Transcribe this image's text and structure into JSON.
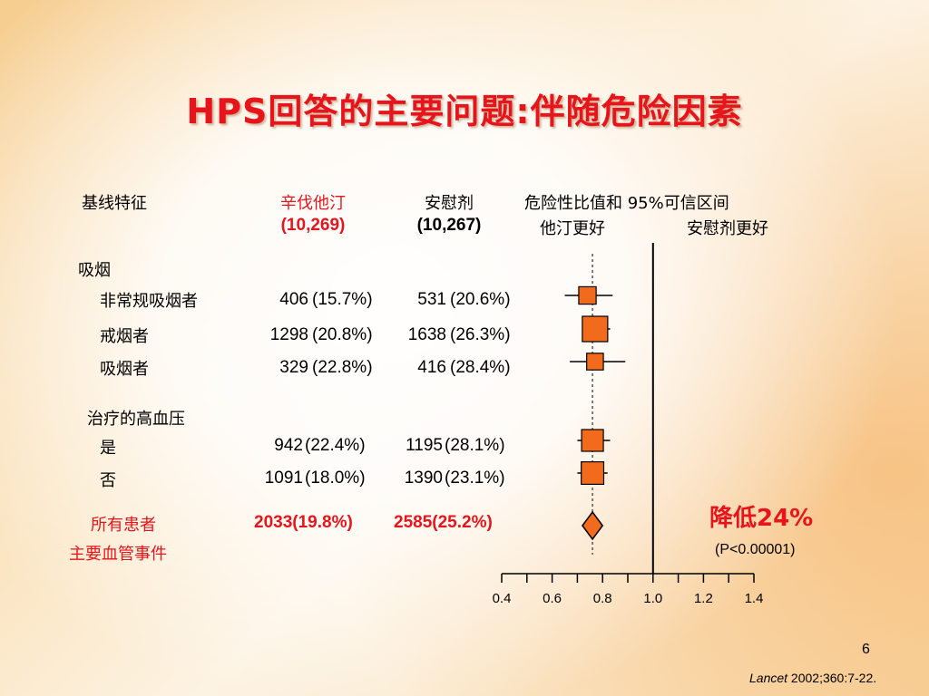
{
  "title": "HPS回答的主要问题:伴随危险因素",
  "header": {
    "col1": "基线特征",
    "col2_line1": "辛伐他汀",
    "col2_line2": "(10,269)",
    "col3_line1": "安慰剂",
    "col3_line2": "(10,267)",
    "col4_line1": "危险性比值和 95%可信区间",
    "col4_favors_left": "他汀更好",
    "col4_favors_right": "安慰剂更好"
  },
  "groups": [
    {
      "label": "吸烟"
    },
    {
      "label": "治疗的高血压"
    }
  ],
  "rows": [
    {
      "label": "非常规吸烟者",
      "simva": "406",
      "simva_pct": "(15.7%)",
      "placebo": "531",
      "placebo_pct": "(20.6%)"
    },
    {
      "label": "戒烟者",
      "simva": "1298",
      "simva_pct": "(20.8%)",
      "placebo": "1638",
      "placebo_pct": "(26.3%)"
    },
    {
      "label": "吸烟者",
      "simva": "329",
      "simva_pct": "(22.8%)",
      "placebo": "416",
      "placebo_pct": "(28.4%)"
    },
    {
      "label": "是",
      "simva": "942",
      "simva_pct": "(22.4%)",
      "placebo": "1195",
      "placebo_pct": "(28.1%)"
    },
    {
      "label": "否",
      "simva": "1091",
      "simva_pct": "(18.0%)",
      "placebo": "1390",
      "placebo_pct": "(23.1%)"
    }
  ],
  "overall": {
    "label_line1": "所有患者",
    "label_line2": "主要血管事件",
    "simva": "2033(19.8%)",
    "placebo": "2585(25.2%)",
    "reduction": "降低24%",
    "p_value": "(P<0.00001)"
  },
  "footer": {
    "page_number": "6",
    "citation_journal": "Lancet",
    "citation_ref": " 2002;360:7-22."
  },
  "chart_data": {
    "type": "forest",
    "x_ticks": [
      "0.4",
      "0.6",
      "0.8",
      "1.0",
      "1.2",
      "1.4"
    ],
    "xlim": [
      0.4,
      1.4
    ],
    "reference_line": 1.0,
    "overall_line": 0.76,
    "points": [
      {
        "label": "非常规吸烟者",
        "hr": 0.74,
        "ci": [
          0.65,
          0.84
        ],
        "weight": 0.45
      },
      {
        "label": "戒烟者",
        "hr": 0.77,
        "ci": [
          0.72,
          0.83
        ],
        "weight": 1.0
      },
      {
        "label": "吸烟者",
        "hr": 0.77,
        "ci": [
          0.67,
          0.89
        ],
        "weight": 0.4
      },
      {
        "label": "是",
        "hr": 0.76,
        "ci": [
          0.7,
          0.83
        ],
        "weight": 0.75
      },
      {
        "label": "否",
        "hr": 0.76,
        "ci": [
          0.7,
          0.82
        ],
        "weight": 0.8
      },
      {
        "label": "所有患者",
        "hr": 0.76,
        "ci": [
          0.72,
          0.8
        ],
        "diamond": true
      }
    ],
    "colors": {
      "marker": "#f26a1b",
      "marker_stroke": "#000000"
    }
  }
}
